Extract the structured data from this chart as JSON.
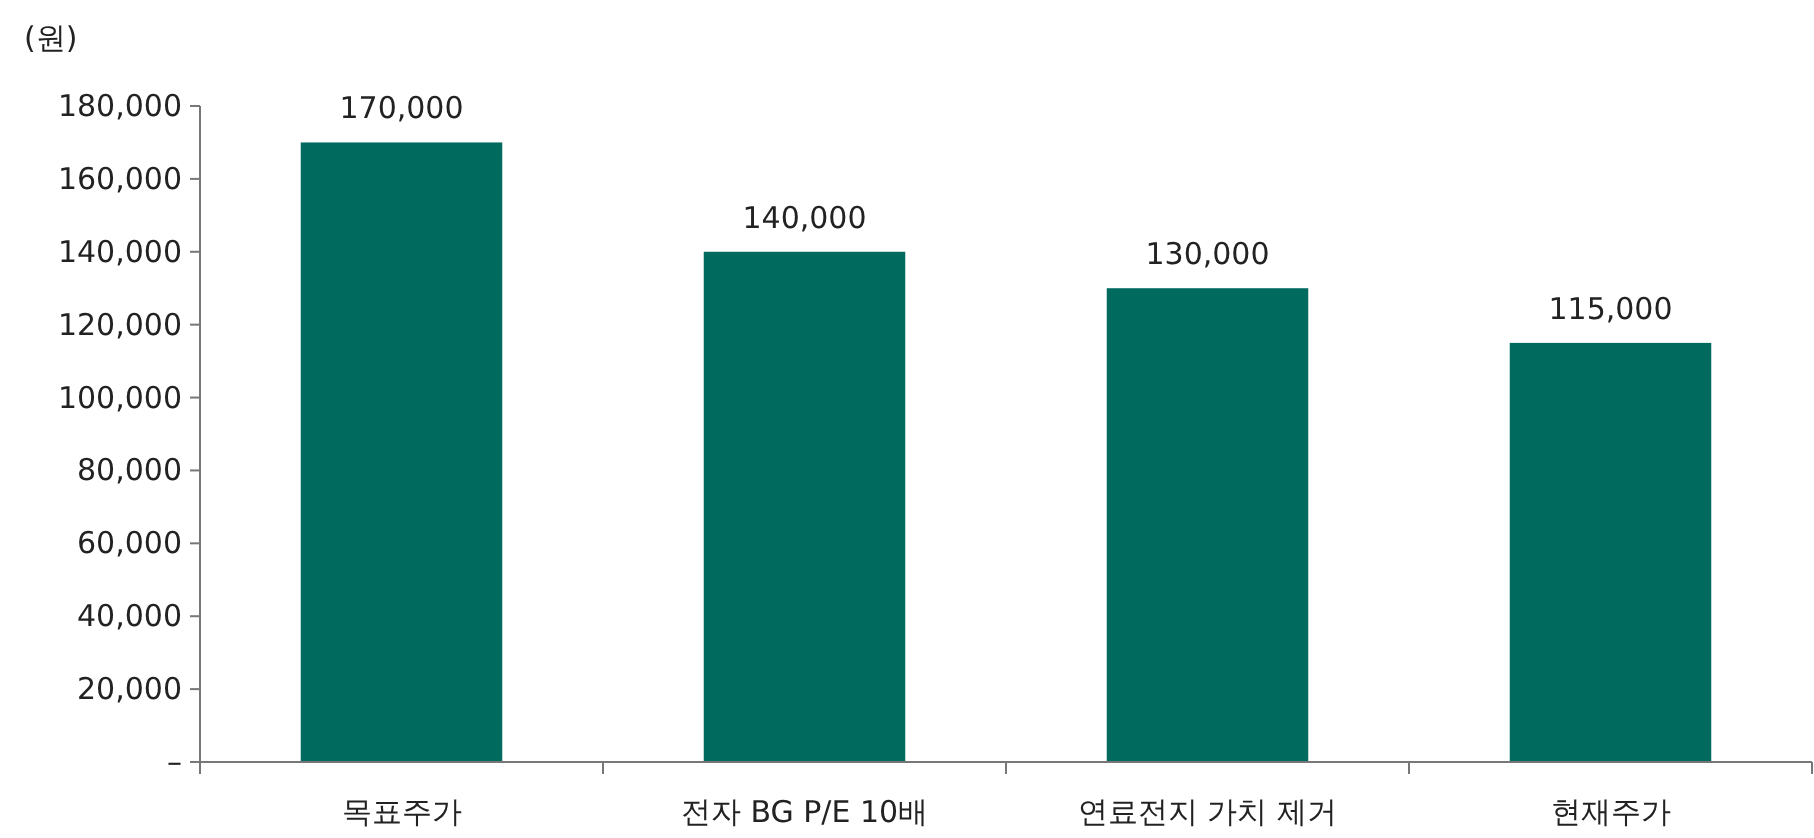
{
  "chart_data": {
    "type": "bar",
    "ylabel": "(원)",
    "categories": [
      "목표주가",
      "전자 BG P/E 10배",
      "연료전지 가치 제거",
      "현재주가"
    ],
    "series": [
      {
        "color": "#006a5f",
        "values": [
          170000,
          140000,
          130000,
          115000
        ],
        "value_labels": [
          "170,000",
          "140,000",
          "130,000",
          "115,000"
        ]
      }
    ],
    "ylim": [
      0,
      180000
    ],
    "yticks": [
      {
        "value": 0,
        "label": "–"
      },
      {
        "value": 20000,
        "label": "20,000"
      },
      {
        "value": 40000,
        "label": "40,000"
      },
      {
        "value": 60000,
        "label": "60,000"
      },
      {
        "value": 80000,
        "label": "80,000"
      },
      {
        "value": 100000,
        "label": "100,000"
      },
      {
        "value": 120000,
        "label": "120,000"
      },
      {
        "value": 140000,
        "label": "140,000"
      },
      {
        "value": 160000,
        "label": "160,000"
      },
      {
        "value": 180000,
        "label": "180,000"
      }
    ],
    "grid": false
  }
}
